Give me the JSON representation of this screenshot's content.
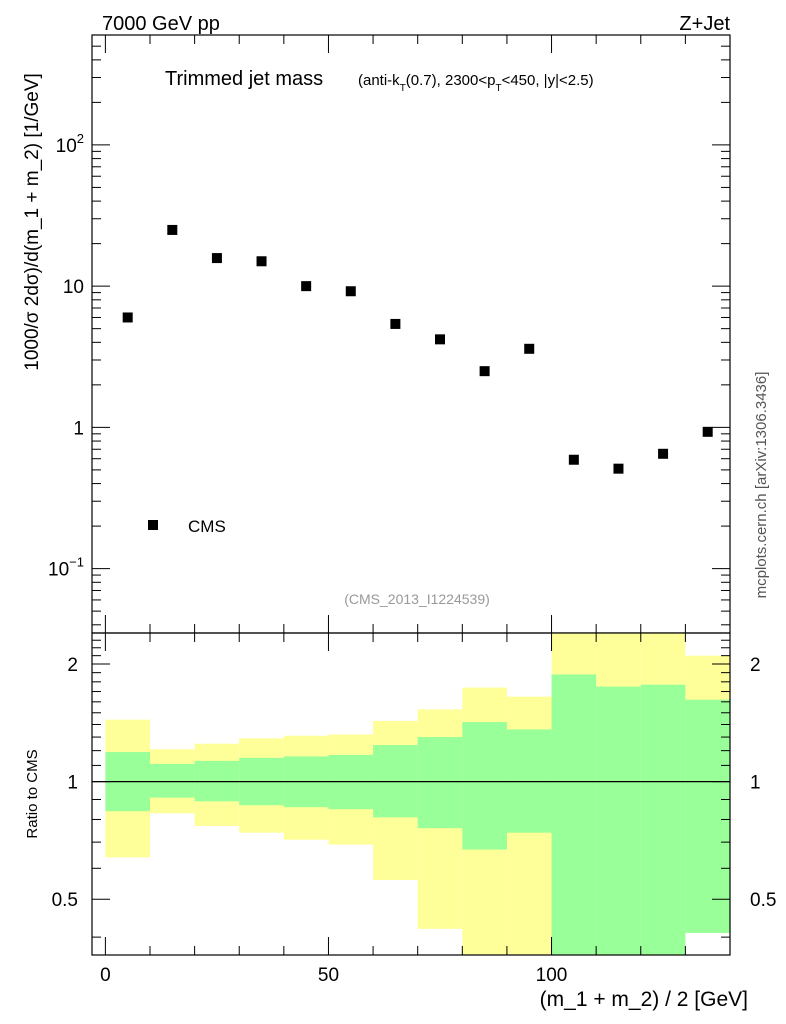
{
  "header": {
    "energy_label": "7000 GeV pp",
    "process_label": "Z+Jet"
  },
  "side_label": "mcplots.cern.ch [arXiv:1306.3436]",
  "colors": {
    "data_marker": "#000000",
    "band_outer": "#ffff99",
    "band_inner": "#99ff99",
    "axis": "#000000",
    "analysis_id_text": "#999999"
  },
  "chart_data": [
    {
      "type": "scatter",
      "panel": "main",
      "title_main": "Trimmed jet mass",
      "title_sub": {
        "prefix": "(anti-k",
        "sub1": "T",
        "middle": "(0.7), 2300<p",
        "sub2": "T",
        "suffix": "<450, |y|<2.5)"
      },
      "ylabel": "1000/σ 2dσ)/d(m_1 + m_2) [1/GeV]",
      "yscale": "log",
      "ylim": [
        0.035,
        600
      ],
      "xlim": [
        -3,
        140
      ],
      "yticks": [
        {
          "value": 0.1,
          "base": "10",
          "exp": "−1"
        },
        {
          "value": 1,
          "base": "1",
          "exp": ""
        },
        {
          "value": 10,
          "base": "10",
          "exp": ""
        },
        {
          "value": 100,
          "base": "10",
          "exp": "2"
        }
      ],
      "legend": {
        "label": "CMS",
        "position": "bottom-left"
      },
      "annotation": "(CMS_2013_I1224539)",
      "series": [
        {
          "name": "CMS",
          "x": [
            5,
            15,
            25,
            35,
            45,
            55,
            65,
            75,
            85,
            95,
            105,
            115,
            125,
            135
          ],
          "values": [
            6.0,
            25.0,
            15.8,
            15.0,
            10.0,
            9.2,
            5.4,
            4.2,
            2.5,
            3.6,
            0.59,
            0.51,
            0.65,
            0.93
          ]
        }
      ]
    },
    {
      "type": "area",
      "panel": "ratio",
      "ylabel": "Ratio to CMS",
      "xlabel": "(m_1 + m_2) / 2 [GeV]",
      "yscale": "log",
      "ylim": [
        0.36,
        2.4
      ],
      "xlim": [
        -3,
        140
      ],
      "xticks": [
        0,
        50,
        100
      ],
      "yticks": [
        0.5,
        1,
        2
      ],
      "reference_line": 1,
      "bins": [
        {
          "low": 0,
          "high": 10,
          "outer": [
            0.64,
            1.44
          ],
          "inner": [
            0.84,
            1.19
          ]
        },
        {
          "low": 10,
          "high": 20,
          "outer": [
            0.83,
            1.21
          ],
          "inner": [
            0.91,
            1.11
          ]
        },
        {
          "low": 20,
          "high": 30,
          "outer": [
            0.77,
            1.25
          ],
          "inner": [
            0.89,
            1.13
          ]
        },
        {
          "low": 30,
          "high": 40,
          "outer": [
            0.74,
            1.29
          ],
          "inner": [
            0.87,
            1.15
          ]
        },
        {
          "low": 40,
          "high": 50,
          "outer": [
            0.71,
            1.31
          ],
          "inner": [
            0.86,
            1.16
          ]
        },
        {
          "low": 50,
          "high": 60,
          "outer": [
            0.69,
            1.32
          ],
          "inner": [
            0.85,
            1.17
          ]
        },
        {
          "low": 60,
          "high": 70,
          "outer": [
            0.56,
            1.43
          ],
          "inner": [
            0.81,
            1.24
          ]
        },
        {
          "low": 70,
          "high": 80,
          "outer": [
            0.42,
            1.53
          ],
          "inner": [
            0.76,
            1.3
          ]
        },
        {
          "low": 80,
          "high": 90,
          "outer": [
            0.3,
            1.74
          ],
          "inner": [
            0.67,
            1.42
          ]
        },
        {
          "low": 90,
          "high": 100,
          "outer": [
            0.3,
            1.65
          ],
          "inner": [
            0.74,
            1.36
          ]
        },
        {
          "low": 100,
          "high": 110,
          "outer": [
            0.3,
            2.6
          ],
          "inner": [
            0.3,
            1.88
          ]
        },
        {
          "low": 110,
          "high": 120,
          "outer": [
            0.3,
            2.4
          ],
          "inner": [
            0.3,
            1.75
          ]
        },
        {
          "low": 120,
          "high": 130,
          "outer": [
            0.3,
            2.45
          ],
          "inner": [
            0.36,
            1.77
          ]
        },
        {
          "low": 130,
          "high": 140,
          "outer": [
            0.41,
            2.1
          ],
          "inner": [
            0.41,
            1.62
          ]
        }
      ]
    }
  ]
}
